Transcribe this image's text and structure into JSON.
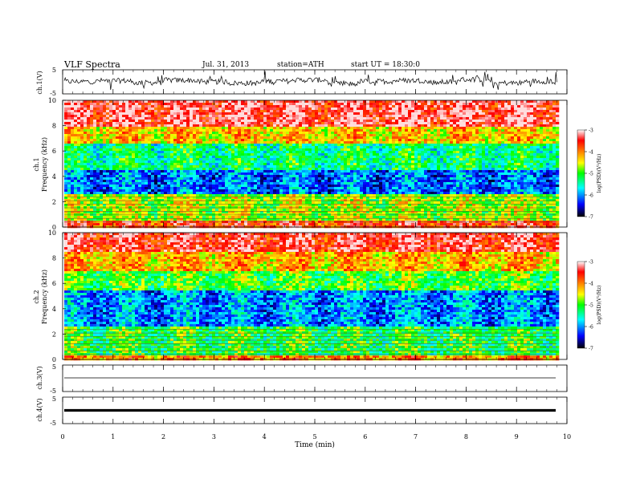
{
  "header": {
    "title": "VLF  Spectra",
    "date": "Jul. 31, 2013",
    "station": "station=ATH",
    "start": "start  UT =   18:30:0"
  },
  "colors": {
    "scale": [
      "#000000",
      "#0000ff",
      "#00ffff",
      "#00ff00",
      "#ffff00",
      "#ff8000",
      "#ff0000",
      "#ffffff"
    ]
  },
  "chart_data": [
    {
      "type": "line",
      "ylabel": "ch.1(V)",
      "ylim": [
        -5,
        5
      ],
      "yticks": [
        "5",
        "-5"
      ],
      "description_mode": "noisy waveform",
      "values": [
        0.2,
        0.8,
        -0.6,
        1.1,
        0.0,
        -0.9,
        0.5,
        1.3,
        -1.4,
        0.3,
        0.9,
        -0.2,
        1.6,
        -0.8,
        0.4,
        0.1
      ]
    },
    {
      "type": "heatmap",
      "ylabel": "Frequency  (kHz)",
      "channel_label": "ch.1",
      "ylim": [
        0,
        10
      ],
      "yticks": [
        "0",
        "2",
        "4",
        "6",
        "8",
        "10"
      ],
      "colorbar": {
        "label": "log(PSD)(V²/Hz)",
        "ticks": [
          "-3",
          "-4",
          "-5",
          "-6",
          "-7"
        ],
        "range": [
          -7,
          -3
        ]
      },
      "bands": [
        {
          "from": 0,
          "to": 0.5,
          "value": -3.6
        },
        {
          "from": 0.5,
          "to": 2.5,
          "value": -4.7
        },
        {
          "from": 2.5,
          "to": 4.5,
          "value": -6.1
        },
        {
          "from": 4.5,
          "to": 6.5,
          "value": -5.3
        },
        {
          "from": 6.5,
          "to": 8.0,
          "value": -4.3
        },
        {
          "from": 8.0,
          "to": 10,
          "value": -3.3
        }
      ]
    },
    {
      "type": "heatmap",
      "ylabel": "Frequency  (kHz)",
      "channel_label": "ch.2",
      "ylim": [
        0,
        10
      ],
      "yticks": [
        "0",
        "2",
        "4",
        "6",
        "8",
        "10"
      ],
      "colorbar": {
        "label": "log(PSD)(V²/Hz)",
        "ticks": [
          "-3",
          "-4",
          "-5",
          "-6",
          "-7"
        ],
        "range": [
          -7,
          -3
        ]
      },
      "bands": [
        {
          "from": 0,
          "to": 0.3,
          "value": -4.0
        },
        {
          "from": 0.3,
          "to": 2.5,
          "value": -5.1
        },
        {
          "from": 2.5,
          "to": 5.5,
          "value": -6.0
        },
        {
          "from": 5.5,
          "to": 7.0,
          "value": -5.0
        },
        {
          "from": 7.0,
          "to": 8.5,
          "value": -4.2
        },
        {
          "from": 8.5,
          "to": 10,
          "value": -3.4
        }
      ]
    },
    {
      "type": "line",
      "ylabel": "ch.3(V)",
      "ylim": [
        -5,
        5
      ],
      "yticks": [
        "5",
        "-5"
      ],
      "values": [
        0,
        0
      ]
    },
    {
      "type": "line",
      "ylabel": "ch.4(V)",
      "ylim": [
        -5,
        5
      ],
      "yticks": [
        "5",
        "-5"
      ],
      "values": [
        0,
        0
      ]
    }
  ],
  "xaxis": {
    "label": "Time  (min)",
    "ticks": [
      "0",
      "1",
      "2",
      "3",
      "4",
      "5",
      "6",
      "7",
      "8",
      "9",
      "10"
    ],
    "range": [
      0,
      10
    ],
    "data_end": 9.8
  }
}
